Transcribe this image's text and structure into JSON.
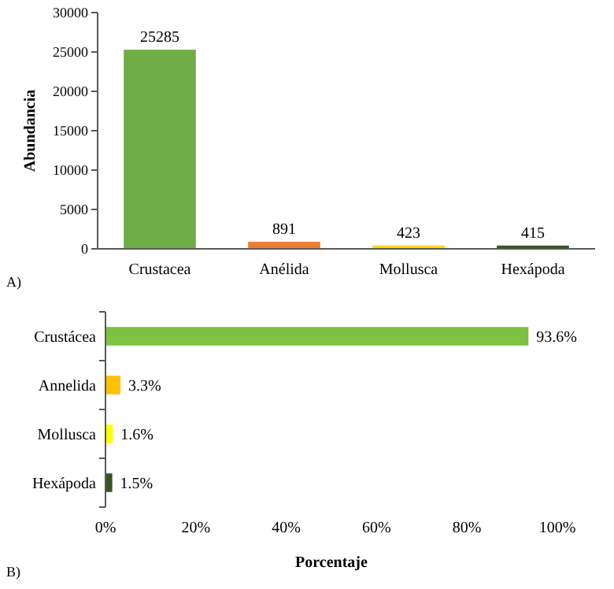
{
  "chart_data": [
    {
      "type": "bar",
      "ylabel": "Abundancia",
      "categories": [
        "Crustacea",
        "Anélida",
        "Mollusca",
        "Hexápoda"
      ],
      "values": [
        25285,
        891,
        423,
        415
      ],
      "colors": [
        "#70ad47",
        "#ed7d31",
        "#ffd700",
        "#375623"
      ],
      "ylim": [
        0,
        30000
      ],
      "yticks": [
        0,
        5000,
        10000,
        15000,
        20000,
        25000,
        30000
      ],
      "data_labels": true,
      "grid": false,
      "annotations": [
        "A)"
      ]
    },
    {
      "type": "bar",
      "orientation": "horizontal",
      "xlabel": "Porcentaje",
      "categories": [
        "Crustácea",
        "Annelida",
        "Mollusca",
        "Hexápoda"
      ],
      "values": [
        93.6,
        3.3,
        1.6,
        1.5
      ],
      "value_labels": [
        "93.6%",
        "3.3%",
        "1.6%",
        "1.5%"
      ],
      "colors": [
        "#7dc242",
        "#ffc000",
        "#ffff00",
        "#375623"
      ],
      "xlim": [
        0,
        100
      ],
      "xticks": [
        {
          "value": 0,
          "label": "0%"
        },
        {
          "value": 20,
          "label": "20%"
        },
        {
          "value": 40,
          "label": "40%"
        },
        {
          "value": 60,
          "label": "60%"
        },
        {
          "value": 80,
          "label": "80%"
        },
        {
          "value": 100,
          "label": "100%"
        }
      ],
      "grid": false,
      "annotations": [
        "B)"
      ]
    }
  ]
}
